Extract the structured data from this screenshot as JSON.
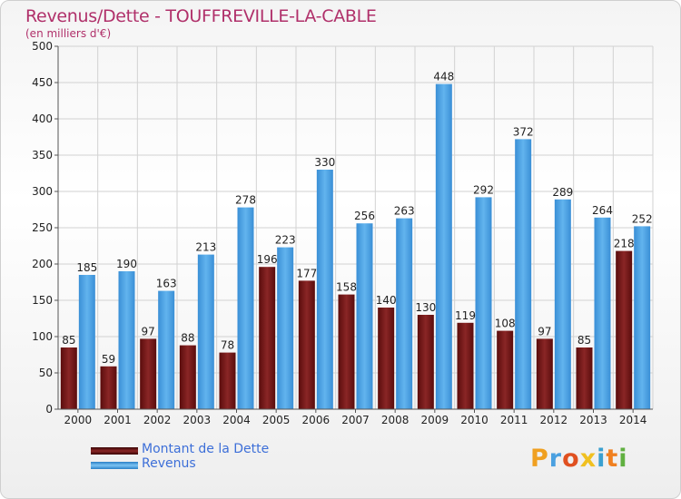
{
  "title": "Revenus/Dette - TOUFFREVILLE-LA-CABLE",
  "subtitle": "(en milliers d'€)",
  "logo_text": "Proxiti",
  "colors": {
    "dette": "#7a1a1a",
    "revenus": "#4ea6e6",
    "axis_text": "#222222",
    "title": "#b0306a",
    "legend_text": "#3d6fd8"
  },
  "legend": {
    "dette_label": "Montant de la Dette",
    "revenus_label": "Revenus"
  },
  "chart_data": {
    "type": "bar",
    "title": "Revenus/Dette - TOUFFREVILLE-LA-CABLE",
    "ylabel": "(en milliers d'€)",
    "xlabel": "",
    "ylim": [
      0,
      500
    ],
    "yticks": [
      0,
      50,
      100,
      150,
      200,
      250,
      300,
      350,
      400,
      450,
      500
    ],
    "grid": true,
    "legend_position": "bottom-left",
    "categories": [
      "2000",
      "2001",
      "2002",
      "2003",
      "2004",
      "2005",
      "2006",
      "2007",
      "2008",
      "2009",
      "2010",
      "2011",
      "2012",
      "2013",
      "2014"
    ],
    "series": [
      {
        "name": "Montant de la Dette",
        "values": [
          85,
          59,
          97,
          88,
          78,
          196,
          177,
          158,
          140,
          130,
          119,
          108,
          97,
          85,
          218
        ]
      },
      {
        "name": "Revenus",
        "values": [
          185,
          190,
          163,
          213,
          278,
          223,
          330,
          256,
          263,
          448,
          292,
          372,
          289,
          264,
          252
        ]
      }
    ]
  }
}
